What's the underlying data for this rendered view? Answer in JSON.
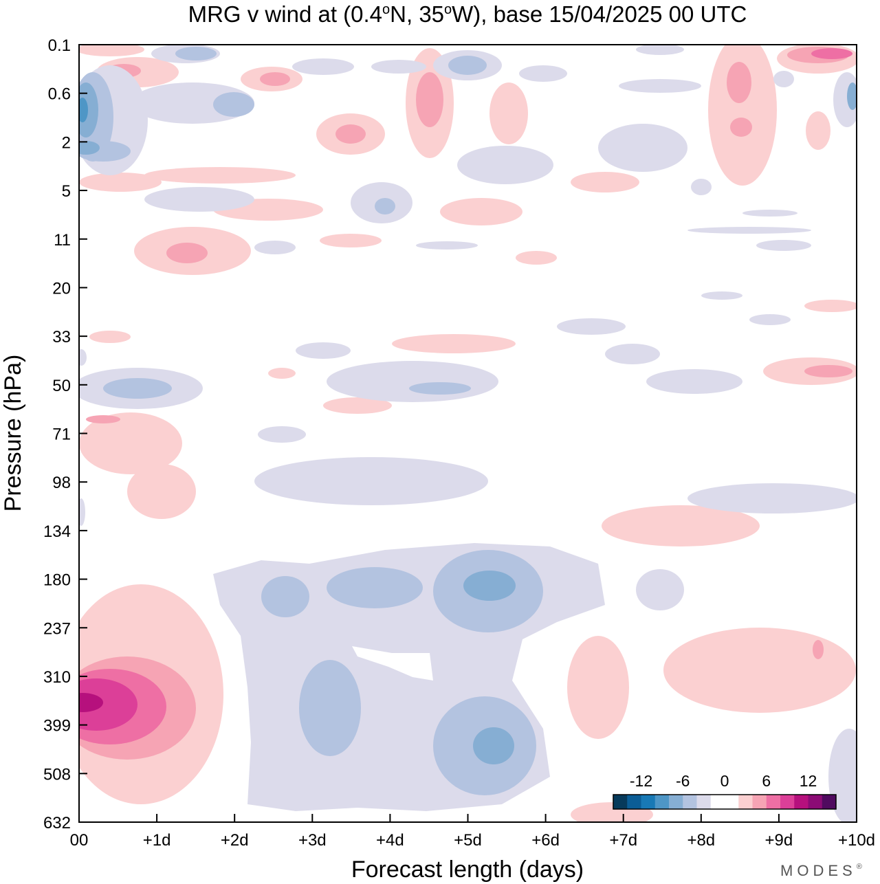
{
  "chart_data": {
    "type": "heatmap",
    "title": "MRG v wind at (0.4",
    "title_lat_unit": "o",
    "title_mid": "N, 35",
    "title_lon_unit": "o",
    "title_end": "W),  base 15/04/2025  00 UTC",
    "xlabel": "Forecast length (days)",
    "ylabel": "Pressure (hPa)",
    "x_ticks": [
      "00",
      "+1d",
      "+2d",
      "+3d",
      "+4d",
      "+5d",
      "+6d",
      "+7d",
      "+8d",
      "+9d",
      "+10d"
    ],
    "y_ticks": [
      "0.1",
      "0.6",
      "2",
      "5",
      "11",
      "20",
      "33",
      "50",
      "71",
      "98",
      "134",
      "180",
      "237",
      "310",
      "399",
      "508",
      "632"
    ],
    "xlim_days": [
      0,
      10
    ],
    "colorbar": {
      "labels": [
        "-12",
        "-6",
        "0",
        "6",
        "12"
      ],
      "colors": [
        "#073a5b",
        "#0b5d96",
        "#1879b5",
        "#4e96c6",
        "#86aed3",
        "#b3c3e0",
        "#dcdbeb",
        "#ffffff",
        "#ffffff",
        "#fbd0d1",
        "#f6a4b4",
        "#ee6fa4",
        "#dc3f98",
        "#b6107d",
        "#8c0b75",
        "#500a5f"
      ]
    },
    "features": [
      {
        "level": "+4",
        "x_days": [
          0.0,
          0.4
        ],
        "pressure_hPa": [
          310,
          399
        ],
        "note": "max near 00 at ~350 hPa"
      },
      {
        "level": "-4",
        "x_days": [
          5.0,
          5.6
        ],
        "pressure_hPa": [
          160,
          200
        ]
      },
      {
        "level": "-4",
        "x_days": [
          5.1,
          5.6
        ],
        "pressure_hPa": [
          399,
          450
        ]
      },
      {
        "level": "+2",
        "x_days": [
          7.5,
          10.0
        ],
        "pressure_hPa": [
          134,
          399
        ]
      }
    ],
    "brand": "MODES",
    "brand_mark": "®"
  }
}
